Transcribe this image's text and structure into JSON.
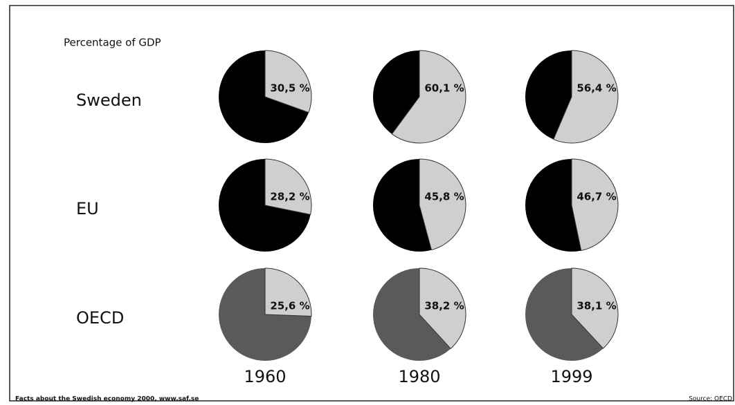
{
  "chart_data": {
    "type": "pie",
    "subtitle": "Percentage of GDP",
    "categories": [
      "1960",
      "1980",
      "1999"
    ],
    "slice_color": "#cfcfcf",
    "series": [
      {
        "name": "Sweden",
        "color": "#000000",
        "values": [
          30.5,
          60.1,
          56.4
        ],
        "value_labels": [
          "30,5 %",
          "60,1 %",
          "56,4 %"
        ]
      },
      {
        "name": "EU",
        "color": "#000000",
        "values": [
          28.2,
          45.8,
          46.7
        ],
        "value_labels": [
          "28,2 %",
          "45,8 %",
          "46,7 %"
        ]
      },
      {
        "name": "OECD",
        "color": "#5a5a5a",
        "values": [
          25.6,
          38.2,
          38.1
        ],
        "value_labels": [
          "25,6 %",
          "38,2 %",
          "38,1 %"
        ]
      }
    ],
    "footer": "Facts about the Swedish economy 2000, www.saf.se",
    "source": "Source: OECD"
  }
}
